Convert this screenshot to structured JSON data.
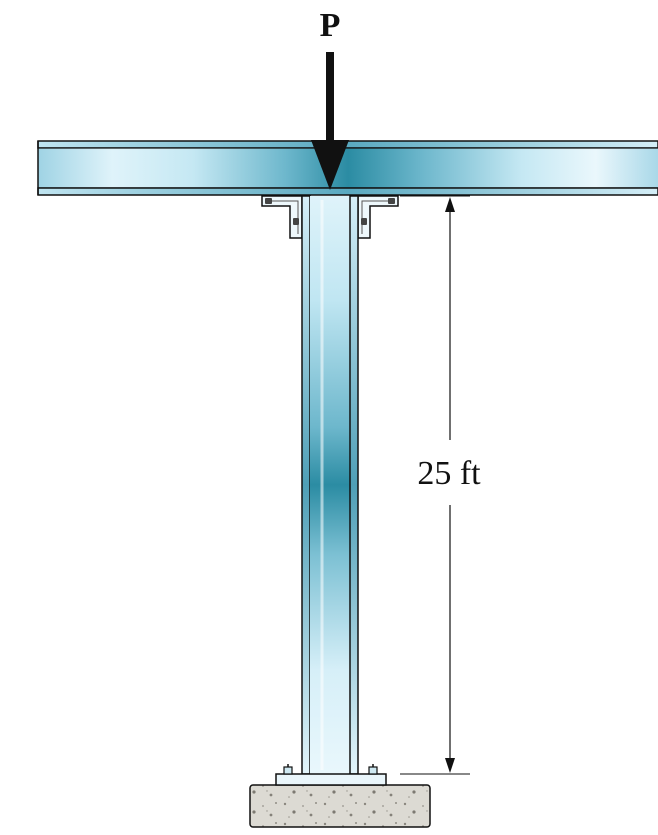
{
  "load": {
    "label": "P"
  },
  "dimension": {
    "label": "25 ft"
  },
  "colors": {
    "steel_dark": "#2b8ca3",
    "steel_light": "#e6f6fc",
    "steel_mid": "#8fcde0",
    "outline": "#111111",
    "concrete": "#d9d7d0"
  }
}
